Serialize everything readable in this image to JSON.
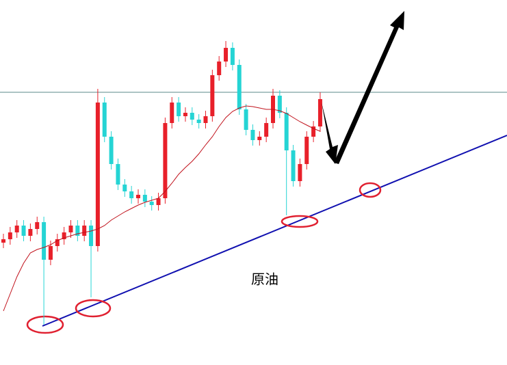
{
  "chart_data": {
    "type": "candlestick",
    "label": "原油",
    "ylim": [
      0,
      534
    ],
    "up_color": "#e8202a",
    "down_color": "#25d4d4",
    "reference_line": 399,
    "open": [
      179,
      184,
      194,
      204,
      189,
      199,
      209,
      154,
      174,
      184,
      194,
      204,
      189,
      204,
      174,
      384,
      334,
      294,
      264,
      254,
      244,
      249,
      239,
      234,
      244,
      354,
      384,
      364,
      369,
      359,
      354,
      364,
      424,
      444,
      464,
      439,
      374,
      344,
      329,
      334,
      354,
      394,
      369,
      314,
      269,
      294,
      334,
      349
    ],
    "high": [
      192,
      202,
      212,
      212,
      207,
      217,
      217,
      182,
      192,
      202,
      212,
      212,
      212,
      212,
      404,
      392,
      342,
      302,
      272,
      262,
      257,
      257,
      247,
      252,
      362,
      392,
      392,
      377,
      377,
      367,
      372,
      432,
      452,
      474,
      472,
      447,
      382,
      352,
      342,
      362,
      404,
      402,
      377,
      322,
      302,
      342,
      357,
      399
    ],
    "low": [
      171,
      176,
      186,
      181,
      181,
      191,
      59,
      146,
      166,
      176,
      186,
      181,
      181,
      99,
      166,
      326,
      286,
      256,
      246,
      236,
      236,
      231,
      226,
      226,
      236,
      346,
      356,
      356,
      351,
      346,
      346,
      356,
      416,
      436,
      431,
      366,
      336,
      321,
      321,
      326,
      346,
      361,
      219,
      261,
      261,
      286,
      326,
      341
    ],
    "close": [
      184,
      194,
      204,
      189,
      199,
      209,
      154,
      174,
      184,
      194,
      204,
      189,
      204,
      174,
      384,
      334,
      294,
      264,
      254,
      244,
      249,
      239,
      234,
      244,
      354,
      384,
      364,
      369,
      359,
      354,
      364,
      424,
      444,
      464,
      439,
      374,
      344,
      329,
      334,
      354,
      394,
      369,
      314,
      269,
      294,
      334,
      349,
      389
    ],
    "series": [
      {
        "color": "#c0101a",
        "values": [
          79,
          104,
          129,
          149,
          164,
          169,
          172,
          176,
          182,
          186,
          189,
          192,
          194,
          196,
          199,
          204,
          212,
          218,
          224,
          229,
          234,
          238,
          241,
          244,
          254,
          266,
          279,
          289,
          298,
          309,
          322,
          334,
          349,
          362,
          371,
          376,
          379,
          378,
          376,
          374,
          374,
          372,
          368,
          362,
          356,
          351,
          346,
          342
        ]
      }
    ]
  }
}
